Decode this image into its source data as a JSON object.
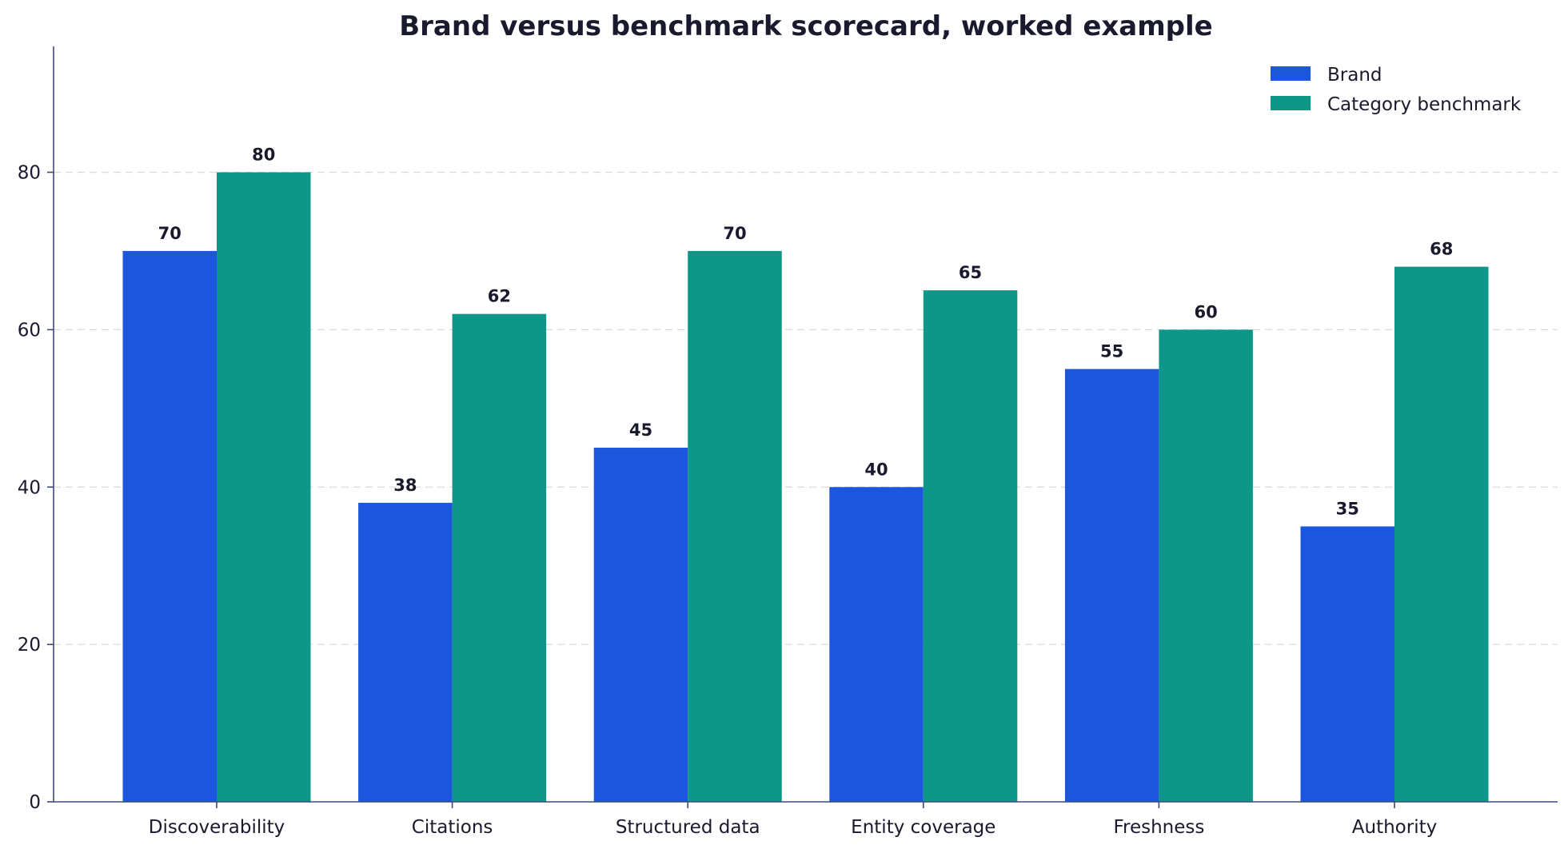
{
  "chart_data": {
    "type": "bar",
    "title": "Brand versus benchmark scorecard, worked example",
    "xlabel": "",
    "ylabel": "",
    "categories": [
      "Discoverability",
      "Citations",
      "Structured data",
      "Entity coverage",
      "Freshness",
      "Authority"
    ],
    "series": [
      {
        "name": "Brand",
        "color": "#1c56dc",
        "values": [
          70,
          38,
          45,
          40,
          55,
          35
        ]
      },
      {
        "name": "Category benchmark",
        "color": "#0e9688",
        "values": [
          80,
          62,
          70,
          65,
          60,
          68
        ]
      }
    ],
    "ylim": [
      0,
      96
    ],
    "yticks": [
      0,
      20,
      40,
      60,
      80
    ],
    "grid": true,
    "legend_position": "top-right",
    "data_labels": true
  }
}
